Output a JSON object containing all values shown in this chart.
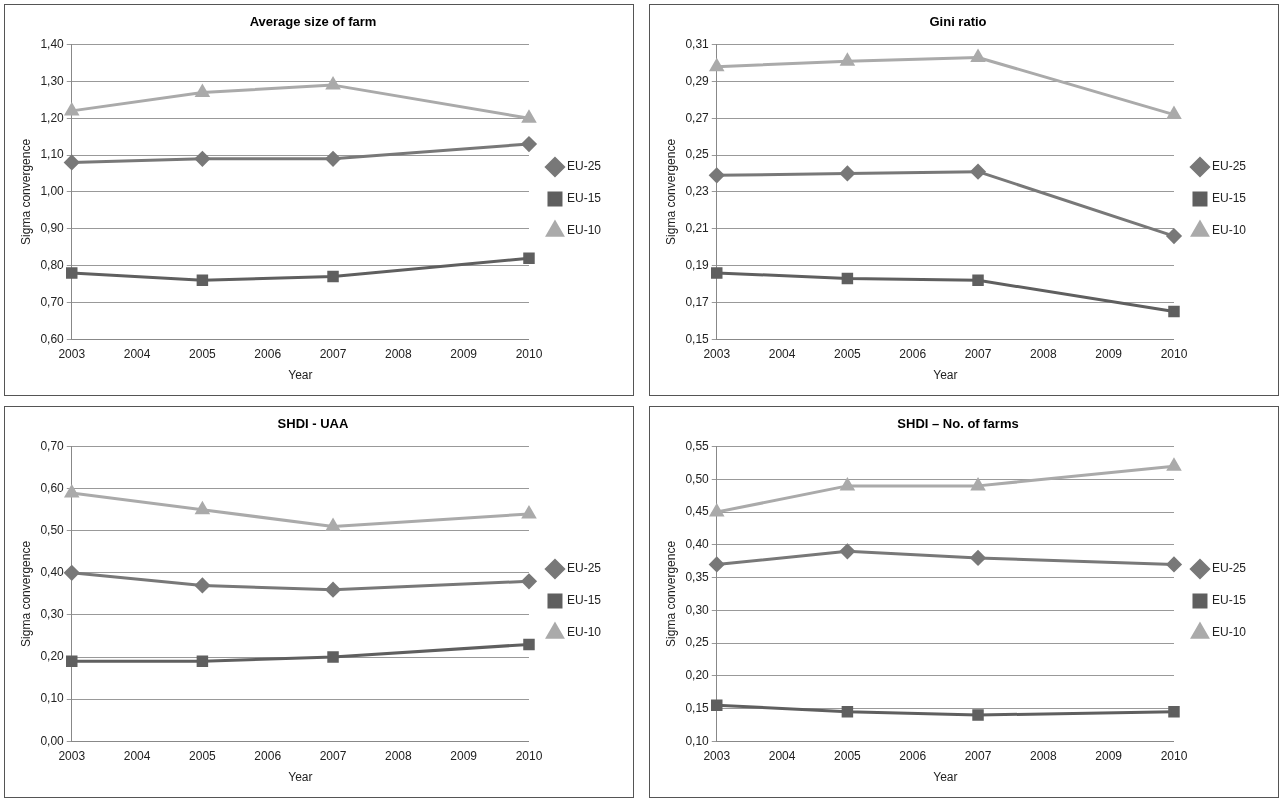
{
  "chart_data": [
    {
      "type": "line",
      "title": "Average size of farm",
      "xlabel": "Year",
      "ylabel": "Sigma convergence",
      "x": [
        2003,
        2005,
        2007,
        2010
      ],
      "xlim": [
        2003,
        2010
      ],
      "xticks": [
        2003,
        2004,
        2005,
        2006,
        2007,
        2008,
        2009,
        2010
      ],
      "ylim": [
        0.6,
        1.4
      ],
      "yticks": [
        {
          "value": 0.6,
          "label": "0,60"
        },
        {
          "value": 0.7,
          "label": "0,70"
        },
        {
          "value": 0.8,
          "label": "0,80"
        },
        {
          "value": 0.9,
          "label": "0,90"
        },
        {
          "value": 1.0,
          "label": "1,00"
        },
        {
          "value": 1.1,
          "label": "1,10"
        },
        {
          "value": 1.2,
          "label": "1,20"
        },
        {
          "value": 1.3,
          "label": "1,30"
        },
        {
          "value": 1.4,
          "label": "1,40"
        }
      ],
      "grid": "y",
      "legend": "right",
      "series": [
        {
          "name": "EU-25",
          "color": "#787878",
          "marker": "diamond",
          "values": [
            1.08,
            1.09,
            1.09,
            1.13
          ]
        },
        {
          "name": "EU-15",
          "color": "#5f5f5f",
          "marker": "square",
          "values": [
            0.78,
            0.76,
            0.77,
            0.82
          ]
        },
        {
          "name": "EU-10",
          "color": "#aaaaaa",
          "marker": "triangle",
          "values": [
            1.22,
            1.27,
            1.29,
            1.2
          ]
        }
      ]
    },
    {
      "type": "line",
      "title": "Gini ratio",
      "xlabel": "Year",
      "ylabel": "Sigma convergence",
      "x": [
        2003,
        2005,
        2007,
        2010
      ],
      "xlim": [
        2003,
        2010
      ],
      "xticks": [
        2003,
        2004,
        2005,
        2006,
        2007,
        2008,
        2009,
        2010
      ],
      "ylim": [
        0.15,
        0.31
      ],
      "yticks": [
        {
          "value": 0.15,
          "label": "0,15"
        },
        {
          "value": 0.17,
          "label": "0,17"
        },
        {
          "value": 0.19,
          "label": "0,19"
        },
        {
          "value": 0.21,
          "label": "0,21"
        },
        {
          "value": 0.23,
          "label": "0,23"
        },
        {
          "value": 0.25,
          "label": "0,25"
        },
        {
          "value": 0.27,
          "label": "0,27"
        },
        {
          "value": 0.29,
          "label": "0,29"
        },
        {
          "value": 0.31,
          "label": "0,31"
        }
      ],
      "grid": "y",
      "legend": "right",
      "series": [
        {
          "name": "EU-25",
          "color": "#787878",
          "marker": "diamond",
          "values": [
            0.239,
            0.24,
            0.241,
            0.206
          ]
        },
        {
          "name": "EU-15",
          "color": "#5f5f5f",
          "marker": "square",
          "values": [
            0.186,
            0.183,
            0.182,
            0.165
          ]
        },
        {
          "name": "EU-10",
          "color": "#aaaaaa",
          "marker": "triangle",
          "values": [
            0.298,
            0.301,
            0.303,
            0.272
          ]
        }
      ]
    },
    {
      "type": "line",
      "title": "SHDI - UAA",
      "xlabel": "Year",
      "ylabel": "Sigma convergence",
      "x": [
        2003,
        2005,
        2007,
        2010
      ],
      "xlim": [
        2003,
        2010
      ],
      "xticks": [
        2003,
        2004,
        2005,
        2006,
        2007,
        2008,
        2009,
        2010
      ],
      "ylim": [
        0,
        0.7
      ],
      "yticks": [
        {
          "value": 0,
          "label": "0,00"
        },
        {
          "value": 0.1,
          "label": "0,10"
        },
        {
          "value": 0.2,
          "label": "0,20"
        },
        {
          "value": 0.3,
          "label": "0,30"
        },
        {
          "value": 0.4,
          "label": "0,40"
        },
        {
          "value": 0.5,
          "label": "0,50"
        },
        {
          "value": 0.6,
          "label": "0,60"
        },
        {
          "value": 0.7,
          "label": "0,70"
        }
      ],
      "grid": "y",
      "legend": "right",
      "series": [
        {
          "name": "EU-25",
          "color": "#787878",
          "marker": "diamond",
          "values": [
            0.4,
            0.37,
            0.36,
            0.38
          ]
        },
        {
          "name": "EU-15",
          "color": "#5f5f5f",
          "marker": "square",
          "values": [
            0.19,
            0.19,
            0.2,
            0.23
          ]
        },
        {
          "name": "EU-10",
          "color": "#aaaaaa",
          "marker": "triangle",
          "values": [
            0.59,
            0.55,
            0.51,
            0.54
          ]
        }
      ]
    },
    {
      "type": "line",
      "title": "SHDI – No. of farms",
      "xlabel": "Year",
      "ylabel": "Sigma convergence",
      "x": [
        2003,
        2005,
        2007,
        2010
      ],
      "xlim": [
        2003,
        2010
      ],
      "xticks": [
        2003,
        2004,
        2005,
        2006,
        2007,
        2008,
        2009,
        2010
      ],
      "ylim": [
        0.1,
        0.55
      ],
      "yticks": [
        {
          "value": 0.1,
          "label": "0,10"
        },
        {
          "value": 0.15,
          "label": "0,15"
        },
        {
          "value": 0.2,
          "label": "0,20"
        },
        {
          "value": 0.25,
          "label": "0,25"
        },
        {
          "value": 0.3,
          "label": "0,30"
        },
        {
          "value": 0.35,
          "label": "0,35"
        },
        {
          "value": 0.4,
          "label": "0,40"
        },
        {
          "value": 0.45,
          "label": "0,45"
        },
        {
          "value": 0.5,
          "label": "0,50"
        },
        {
          "value": 0.55,
          "label": "0,55"
        }
      ],
      "grid": "y",
      "legend": "right",
      "series": [
        {
          "name": "EU-25",
          "color": "#787878",
          "marker": "diamond",
          "values": [
            0.37,
            0.39,
            0.38,
            0.37
          ]
        },
        {
          "name": "EU-15",
          "color": "#5f5f5f",
          "marker": "square",
          "values": [
            0.155,
            0.145,
            0.14,
            0.145
          ]
        },
        {
          "name": "EU-10",
          "color": "#aaaaaa",
          "marker": "triangle",
          "values": [
            0.45,
            0.49,
            0.49,
            0.52
          ]
        }
      ]
    }
  ]
}
